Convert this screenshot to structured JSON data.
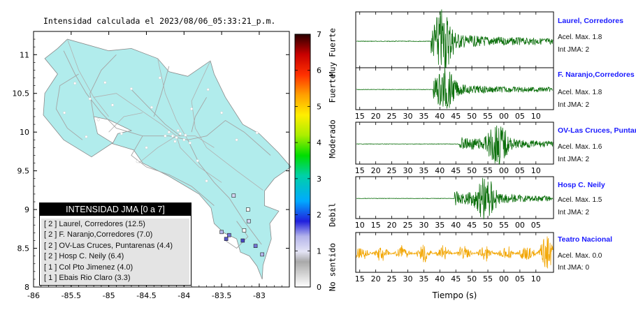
{
  "map": {
    "title": "Intensidad calculada el 2023/08/06_05:33:21_p.m.",
    "x_ticks": [
      "-86",
      "-85.5",
      "-85",
      "-84.5",
      "-84",
      "-83.5",
      "-83"
    ],
    "y_ticks": [
      "11",
      "10.5",
      "10",
      "9.5",
      "9",
      "8.5",
      "8"
    ],
    "xlim": [
      -86,
      -82.6
    ],
    "ylim": [
      8,
      11.3
    ]
  },
  "colorbar": {
    "ticks": [
      "0",
      "1",
      "2",
      "3",
      "4",
      "5",
      "6",
      "7"
    ],
    "categories": [
      "No sentido",
      "Debil",
      "Moderado",
      "Fuerte",
      "Muy Fuerte"
    ]
  },
  "legend": {
    "title": "INTENSIDAD JMA [0 a 7]",
    "rows": [
      "[ 2 ]  Laurel, Corredores (12.5)",
      "[ 2 ]  F. Naranjo,Corredores (7.0)",
      "[ 2 ]  OV-Las Cruces, Puntarenas (4.4)",
      "[ 2 ]  Hosp C. Neily (6.4)",
      "[ 1 ]  Col Pto Jimenez (4.0)",
      "[ 1 ]  Ebais Rio Claro (3.3)"
    ]
  },
  "stations": [
    {
      "name": "Laurel, Corredores",
      "accel": "Acel. Max. 1.8",
      "jma": "Int JMA: 2",
      "color": "#0a6e0a",
      "ticks": [
        "15",
        "20",
        "25",
        "30",
        "35",
        "40",
        "45",
        "50",
        "55",
        "00",
        "05",
        "10"
      ],
      "tick_start": 15,
      "onset": 0.38,
      "peak": 0.44,
      "amp": 1.0
    },
    {
      "name": "F. Naranjo,Corredores",
      "accel": "Acel. Max. 1.8",
      "jma": "Int JMA: 2",
      "color": "#0a6e0a",
      "ticks": [
        "15",
        "20",
        "25",
        "30",
        "35",
        "40",
        "45",
        "50",
        "55",
        "00",
        "05",
        "10"
      ],
      "tick_start": 15,
      "onset": 0.39,
      "peak": 0.45,
      "amp": 0.9
    },
    {
      "name": "OV-Las Cruces, Puntar",
      "accel": "Acel. Max. 1.6",
      "jma": "Int JMA: 2",
      "color": "#0a6e0a",
      "ticks": [
        "15",
        "20",
        "25",
        "30",
        "35",
        "40",
        "45",
        "50",
        "55",
        "00",
        "05",
        "10"
      ],
      "tick_start": 15,
      "onset": 0.52,
      "peak": 0.72,
      "amp": 1.0
    },
    {
      "name": "Hosp C. Neily",
      "accel": "Acel. Max. 1.5",
      "jma": "Int JMA: 2",
      "color": "#0a6e0a",
      "ticks": [
        "10",
        "15",
        "20",
        "25",
        "30",
        "35",
        "40",
        "45",
        "50",
        "55",
        "00",
        "05"
      ],
      "tick_start": 10,
      "onset": 0.5,
      "peak": 0.66,
      "amp": 1.0
    },
    {
      "name": "Teatro Nacional",
      "accel": "Acel. Max. 0.0",
      "jma": "Int JMA: 0",
      "color": "#f2a500",
      "ticks": [
        "15",
        "20",
        "25",
        "30",
        "35",
        "40",
        "45",
        "50",
        "55",
        "00",
        "05",
        "10"
      ],
      "tick_start": 15,
      "onset": 0.0,
      "peak": 0.95,
      "amp": 0.55
    }
  ],
  "xlabel": "Tiempo (s)",
  "chart_data": [
    {
      "type": "map",
      "title": "Intensidad calculada el 2023/08/06_05:33:21_p.m.",
      "xlim": [
        -86,
        -82.6
      ],
      "ylim": [
        8,
        11.3
      ],
      "legend_title": "INTENSIDAD JMA [0 a 7]",
      "legend_placement": "bottom-left",
      "points": [
        {
          "label": "Laurel, Corredores",
          "jma": 2,
          "value": 12.5
        },
        {
          "label": "F. Naranjo,Corredores",
          "jma": 2,
          "value": 7.0
        },
        {
          "label": "OV-Las Cruces, Puntarenas",
          "jma": 2,
          "value": 4.4
        },
        {
          "label": "Hosp C. Neily",
          "jma": 2,
          "value": 6.4
        },
        {
          "label": "Col Pto Jimenez",
          "jma": 1,
          "value": 4.0
        },
        {
          "label": "Ebais Rio Claro",
          "jma": 1,
          "value": 3.3
        }
      ],
      "colorbar_range": [
        0,
        7
      ]
    },
    {
      "type": "line",
      "xlabel": "Tiempo (s)",
      "series": [
        {
          "name": "Laurel, Corredores",
          "max_accel": 1.8,
          "jma": 2
        },
        {
          "name": "F. Naranjo,Corredores",
          "max_accel": 1.8,
          "jma": 2
        },
        {
          "name": "OV-Las Cruces, Puntar",
          "max_accel": 1.6,
          "jma": 2
        },
        {
          "name": "Hosp C. Neily",
          "max_accel": 1.5,
          "jma": 2
        },
        {
          "name": "Teatro Nacional",
          "max_accel": 0.0,
          "jma": 0
        }
      ]
    }
  ]
}
